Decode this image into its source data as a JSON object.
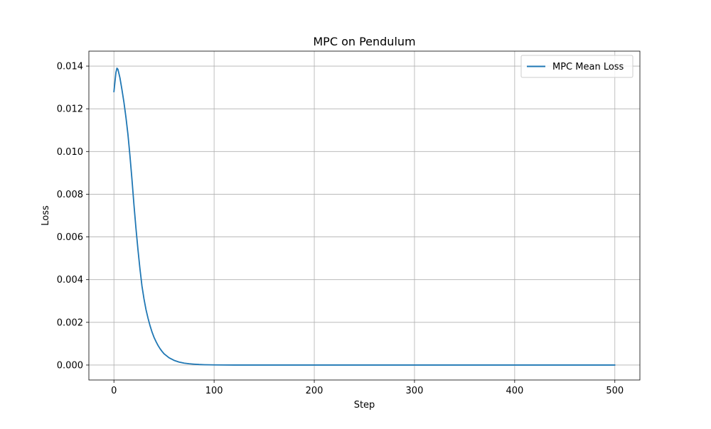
{
  "chart_data": {
    "type": "line",
    "title": "MPC on Pendulum",
    "xlabel": "Step",
    "ylabel": "Loss",
    "xlim": [
      -25,
      525
    ],
    "ylim": [
      -0.0007,
      0.0147
    ],
    "xticks": [
      0,
      100,
      200,
      300,
      400,
      500
    ],
    "xtick_labels": [
      "0",
      "100",
      "200",
      "300",
      "400",
      "500"
    ],
    "yticks": [
      0.0,
      0.002,
      0.004,
      0.006,
      0.008,
      0.01,
      0.012,
      0.014
    ],
    "ytick_labels": [
      "0.000",
      "0.002",
      "0.004",
      "0.006",
      "0.008",
      "0.010",
      "0.012",
      "0.014"
    ],
    "grid": true,
    "legend_position": "upper right",
    "series": [
      {
        "name": "MPC Mean Loss",
        "color": "#1f77b4",
        "x": [
          0,
          2,
          3,
          4,
          6,
          8,
          10,
          12,
          14,
          16,
          18,
          20,
          22,
          24,
          26,
          28,
          30,
          32,
          34,
          36,
          38,
          40,
          42,
          44,
          46,
          48,
          50,
          55,
          60,
          65,
          70,
          75,
          80,
          85,
          90,
          95,
          100,
          110,
          120,
          130,
          150,
          200,
          300,
          400,
          500
        ],
        "y": [
          0.0128,
          0.0137,
          0.0139,
          0.01385,
          0.01345,
          0.0129,
          0.0123,
          0.0116,
          0.0108,
          0.0098,
          0.0087,
          0.0075,
          0.0064,
          0.0054,
          0.0045,
          0.0037,
          0.0031,
          0.0026,
          0.0022,
          0.00185,
          0.00155,
          0.0013,
          0.0011,
          0.00092,
          0.00077,
          0.00064,
          0.00053,
          0.00034,
          0.00022,
          0.00014,
          9e-05,
          6e-05,
          4e-05,
          2.5e-05,
          1.6e-05,
          1e-05,
          6e-06,
          3e-06,
          1e-06,
          5e-07,
          0.0,
          0.0,
          0.0,
          0.0,
          0.0
        ]
      }
    ]
  }
}
